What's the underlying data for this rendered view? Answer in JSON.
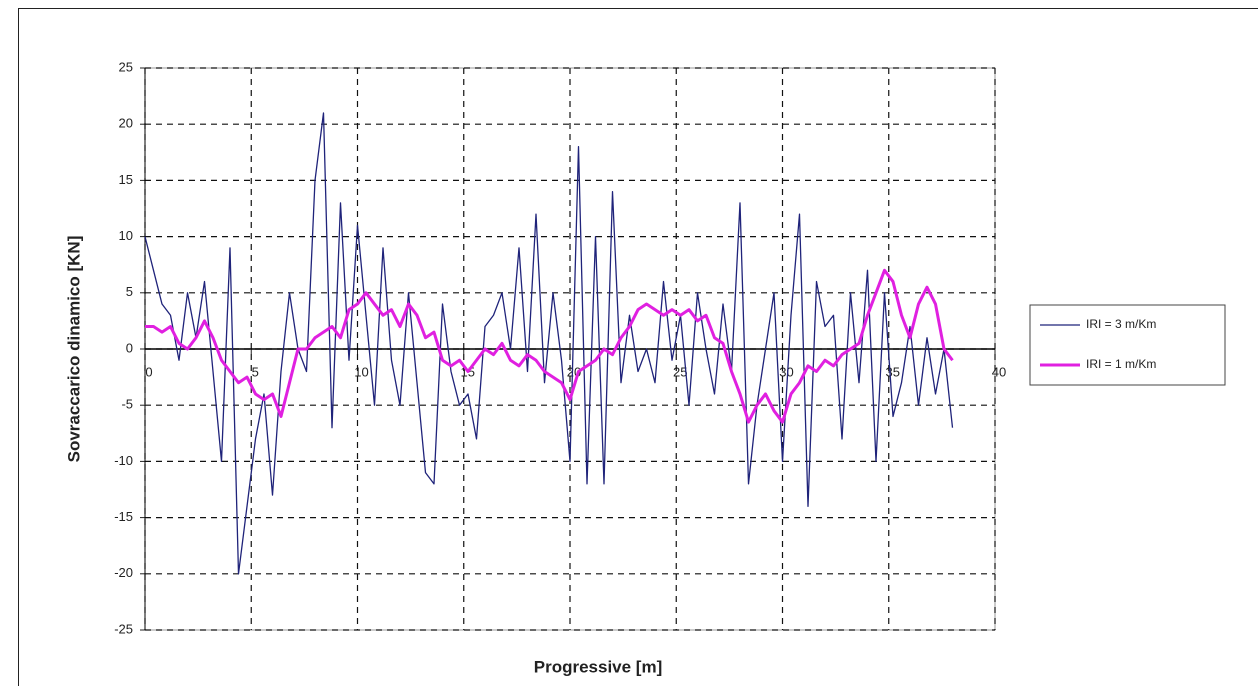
{
  "chart_data": {
    "type": "line",
    "x_label": "Progressive [m]",
    "y_label": "Sovraccarico dinamico [KN]",
    "x": [
      0,
      0.4,
      0.8,
      1.2,
      1.6,
      2,
      2.4,
      2.8,
      3.2,
      3.6,
      4,
      4.4,
      4.8,
      5.2,
      5.6,
      6,
      6.4,
      6.8,
      7.2,
      7.6,
      8,
      8.4,
      8.8,
      9.2,
      9.6,
      10,
      10.4,
      10.8,
      11.2,
      11.6,
      12,
      12.4,
      12.8,
      13.2,
      13.6,
      14,
      14.4,
      14.8,
      15.2,
      15.6,
      16,
      16.4,
      16.8,
      17.2,
      17.6,
      18,
      18.4,
      18.8,
      19.2,
      19.6,
      20,
      20.4,
      20.8,
      21.2,
      21.6,
      22,
      22.4,
      22.8,
      23.2,
      23.6,
      24,
      24.4,
      24.8,
      25.2,
      25.6,
      26,
      26.4,
      26.8,
      27.2,
      27.6,
      28,
      28.4,
      28.8,
      29.2,
      29.6,
      30,
      30.4,
      30.8,
      31.2,
      31.6,
      32,
      32.4,
      32.8,
      33.2,
      33.6,
      34,
      34.4,
      34.8,
      35.2,
      35.6,
      36,
      36.4,
      36.8,
      37.2,
      37.6,
      38
    ],
    "series": [
      {
        "name": "IRI = 3 m/Km",
        "color": "#1f237a",
        "width": 1.3,
        "values": [
          10,
          7,
          4,
          3,
          -1,
          5,
          1,
          6,
          -2,
          -10,
          9,
          -20,
          -14,
          -8,
          -4,
          -13,
          -2,
          5,
          0,
          -2,
          15,
          21,
          -7,
          13,
          -1,
          11,
          3,
          -5,
          9,
          -1,
          -5,
          5,
          -3,
          -11,
          -12,
          4,
          -2,
          -5,
          -4,
          -8,
          2,
          3,
          5,
          0,
          9,
          -2,
          12,
          -3,
          5,
          -1,
          -10,
          18,
          -12,
          10,
          -12,
          14,
          -3,
          3,
          -2,
          0,
          -3,
          6,
          -1,
          3,
          -5,
          5,
          0,
          -4,
          4,
          -2,
          13,
          -12,
          -5,
          0,
          5,
          -10,
          3,
          12,
          -14,
          6,
          2,
          3,
          -8,
          5,
          -3,
          7,
          -10,
          5,
          -6,
          -3,
          2,
          -5,
          1,
          -4,
          0,
          -7
        ]
      },
      {
        "name": "IRI = 1 m/Km",
        "color": "#e020e0",
        "width": 3,
        "values": [
          2,
          2,
          1.5,
          2,
          0.5,
          0,
          1,
          2.5,
          1,
          -1,
          -2,
          -3,
          -2.5,
          -4,
          -4.5,
          -4,
          -6,
          -3,
          0,
          0,
          1,
          1.5,
          2,
          1,
          3.5,
          4,
          5,
          4,
          3,
          3.5,
          2,
          4,
          3,
          1,
          1.5,
          -1,
          -1.5,
          -1,
          -2,
          -1,
          0,
          -0.5,
          0.5,
          -1,
          -1.5,
          -0.5,
          -1,
          -2,
          -2.5,
          -3,
          -4.5,
          -2,
          -1.5,
          -1,
          0,
          -0.5,
          1,
          2,
          3.5,
          4,
          3.5,
          3,
          3.5,
          3,
          3.5,
          2.5,
          3,
          1,
          0.5,
          -2,
          -4,
          -6.5,
          -5,
          -4,
          -5.5,
          -6.5,
          -4,
          -3,
          -1.5,
          -2,
          -1,
          -1.5,
          -0.5,
          0,
          0.5,
          3,
          5,
          7,
          6,
          3,
          1,
          4,
          5.5,
          4,
          0,
          -1
        ]
      }
    ],
    "xlim": [
      0,
      40
    ],
    "xticks": [
      0,
      5,
      10,
      15,
      20,
      25,
      30,
      35,
      40
    ],
    "ylim": [
      -25,
      25
    ],
    "yticks": [
      -25,
      -20,
      -15,
      -10,
      -5,
      0,
      5,
      10,
      15,
      20,
      25
    ],
    "grid": true,
    "legend": "right"
  }
}
